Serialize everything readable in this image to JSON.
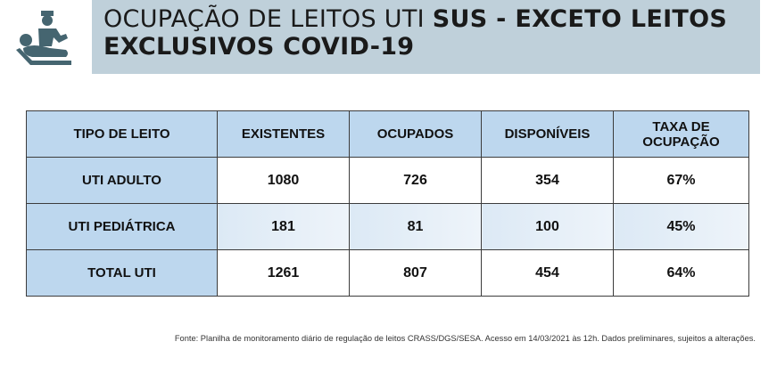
{
  "header": {
    "title_light": "OCUPAÇÃO DE LEITOS UTI ",
    "title_bold1": "SUS - EXCETO LEITOS",
    "title_bold2": "EXCLUSIVOS COVID-19",
    "icon": "doctor-patient-bed-icon"
  },
  "table": {
    "columns": [
      "TIPO DE LEITO",
      "EXISTENTES",
      "OCUPADOS",
      "DISPONÍVEIS",
      "TAXA DE OCUPAÇÃO"
    ],
    "rows": [
      [
        "UTI ADULTO",
        "1080",
        "726",
        "354",
        "67%"
      ],
      [
        "UTI PEDIÁTRICA",
        "181",
        "81",
        "100",
        "45%"
      ],
      [
        "TOTAL UTI",
        "1261",
        "807",
        "454",
        "64%"
      ]
    ]
  },
  "footer": "Fonte: Planilha de monitoramento diário de regulação de leitos CRASS/DGS/SESA. Acesso em 14/03/2021 às 12h. Dados preliminares, sujeitos a alterações."
}
